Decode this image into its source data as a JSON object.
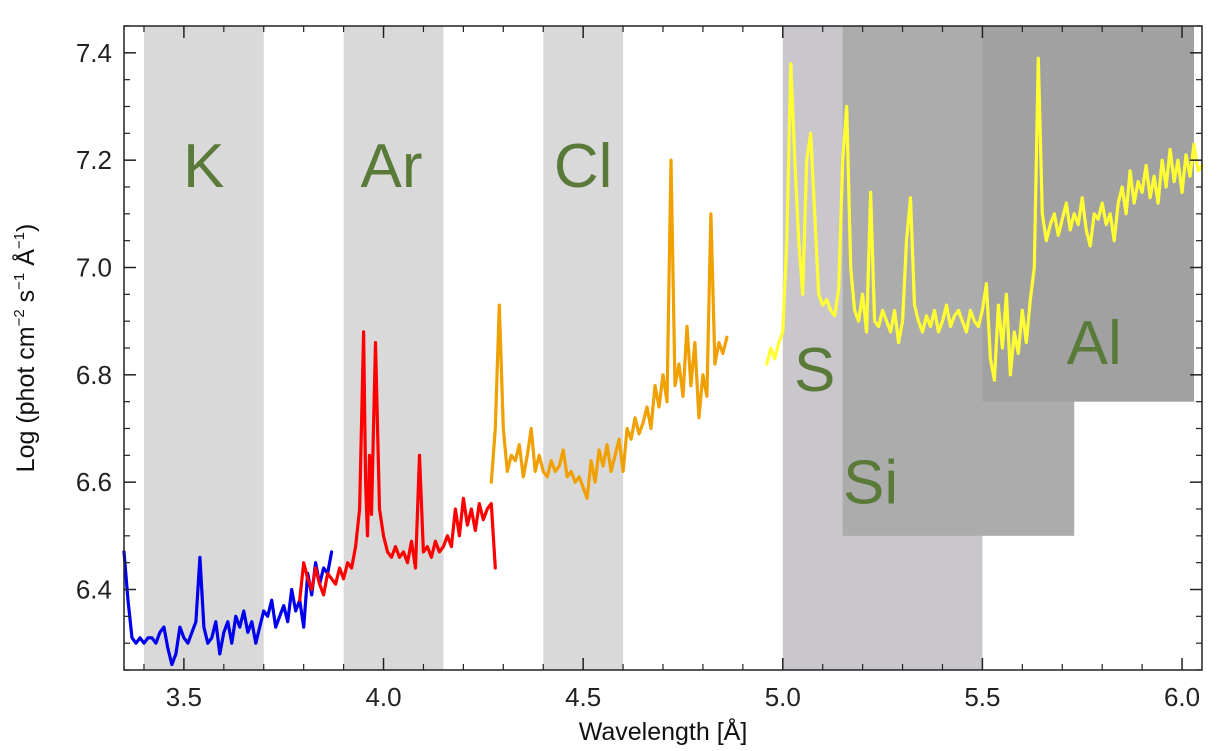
{
  "chart_data": {
    "type": "line",
    "xlabel": "Wavelength [Å]",
    "ylabel_parts": [
      "Log (phot cm",
      "−2",
      " s",
      "−1",
      " Å",
      "−1",
      ")"
    ],
    "ylabel": "Log (phot cm−2 s−1 Å−1)",
    "xlim": [
      3.35,
      6.05
    ],
    "ylim": [
      6.25,
      7.45
    ],
    "xticks": [
      3.5,
      4.0,
      4.5,
      5.0,
      5.5,
      6.0
    ],
    "xtick_labels": [
      "3.5",
      "4.0",
      "4.5",
      "5.0",
      "5.5",
      "6.0"
    ],
    "yticks": [
      6.4,
      6.6,
      6.8,
      7.0,
      7.2,
      7.4
    ],
    "ytick_labels": [
      "6.4",
      "6.6",
      "6.8",
      "7.0",
      "7.2",
      "7.4"
    ],
    "bands": [
      {
        "label": "K",
        "x": [
          3.4,
          3.7
        ],
        "y": [
          6.25,
          7.45
        ],
        "color": "#d9d9d9",
        "label_pos": [
          3.55,
          7.15
        ]
      },
      {
        "label": "Ar",
        "x": [
          3.9,
          4.15
        ],
        "y": [
          6.25,
          7.45
        ],
        "color": "#d9d9d9",
        "label_pos": [
          4.02,
          7.15
        ]
      },
      {
        "label": "Cl",
        "x": [
          4.4,
          4.6
        ],
        "y": [
          6.25,
          7.45
        ],
        "color": "#d9d9d9",
        "label_pos": [
          4.5,
          7.15
        ]
      },
      {
        "label": "S",
        "x": [
          5.0,
          5.5
        ],
        "y": [
          6.25,
          7.45
        ],
        "color": "#c9c6cc",
        "label_pos": [
          5.08,
          6.77
        ]
      },
      {
        "label": "Si",
        "x": [
          5.15,
          5.73
        ],
        "y": [
          6.5,
          7.45
        ],
        "color": "#acacac",
        "label_pos": [
          5.22,
          6.56
        ]
      },
      {
        "label": "Al",
        "x": [
          5.5,
          6.03
        ],
        "y": [
          6.75,
          7.45
        ],
        "color": "#a1a1a1",
        "label_pos": [
          5.78,
          6.82
        ]
      }
    ],
    "series": [
      {
        "name": "K",
        "color": "#0000ee",
        "x": [
          3.35,
          3.36,
          3.37,
          3.38,
          3.39,
          3.4,
          3.41,
          3.42,
          3.43,
          3.44,
          3.45,
          3.46,
          3.47,
          3.48,
          3.49,
          3.5,
          3.51,
          3.52,
          3.53,
          3.54,
          3.55,
          3.56,
          3.57,
          3.58,
          3.59,
          3.6,
          3.61,
          3.62,
          3.63,
          3.64,
          3.65,
          3.66,
          3.67,
          3.68,
          3.69,
          3.7,
          3.71,
          3.72,
          3.73,
          3.74,
          3.75,
          3.76,
          3.77,
          3.78,
          3.79,
          3.8,
          3.81,
          3.82,
          3.83,
          3.84,
          3.85,
          3.86,
          3.87
        ],
        "y": [
          6.47,
          6.38,
          6.31,
          6.3,
          6.31,
          6.3,
          6.31,
          6.31,
          6.3,
          6.32,
          6.33,
          6.29,
          6.26,
          6.28,
          6.33,
          6.31,
          6.3,
          6.32,
          6.34,
          6.46,
          6.33,
          6.3,
          6.31,
          6.34,
          6.28,
          6.32,
          6.34,
          6.3,
          6.35,
          6.33,
          6.36,
          6.32,
          6.34,
          6.3,
          6.33,
          6.36,
          6.35,
          6.38,
          6.33,
          6.35,
          6.37,
          6.34,
          6.4,
          6.36,
          6.38,
          6.33,
          6.43,
          6.39,
          6.45,
          6.41,
          6.44,
          6.43,
          6.47
        ]
      },
      {
        "name": "Ar",
        "color": "#ff0000",
        "x": [
          3.79,
          3.8,
          3.81,
          3.82,
          3.83,
          3.84,
          3.85,
          3.86,
          3.87,
          3.88,
          3.89,
          3.9,
          3.91,
          3.92,
          3.93,
          3.94,
          3.95,
          3.955,
          3.96,
          3.965,
          3.97,
          3.98,
          3.99,
          4.0,
          4.01,
          4.02,
          4.03,
          4.04,
          4.05,
          4.06,
          4.07,
          4.08,
          4.09,
          4.1,
          4.11,
          4.12,
          4.13,
          4.14,
          4.15,
          4.16,
          4.17,
          4.18,
          4.19,
          4.2,
          4.21,
          4.22,
          4.23,
          4.24,
          4.25,
          4.26,
          4.27,
          4.28
        ],
        "y": [
          6.38,
          6.45,
          6.42,
          6.4,
          6.44,
          6.41,
          6.39,
          6.43,
          6.42,
          6.41,
          6.44,
          6.42,
          6.45,
          6.44,
          6.48,
          6.55,
          6.88,
          6.6,
          6.5,
          6.65,
          6.54,
          6.86,
          6.55,
          6.5,
          6.47,
          6.46,
          6.48,
          6.46,
          6.47,
          6.45,
          6.49,
          6.44,
          6.65,
          6.47,
          6.48,
          6.46,
          6.49,
          6.47,
          6.48,
          6.5,
          6.48,
          6.55,
          6.5,
          6.57,
          6.52,
          6.55,
          6.51,
          6.56,
          6.53,
          6.55,
          6.56,
          6.44
        ]
      },
      {
        "name": "Cl",
        "color": "#f0a000",
        "x": [
          4.27,
          4.28,
          4.29,
          4.3,
          4.31,
          4.32,
          4.33,
          4.34,
          4.35,
          4.36,
          4.37,
          4.38,
          4.39,
          4.4,
          4.41,
          4.42,
          4.43,
          4.44,
          4.45,
          4.46,
          4.47,
          4.48,
          4.49,
          4.5,
          4.51,
          4.52,
          4.53,
          4.54,
          4.55,
          4.56,
          4.57,
          4.58,
          4.59,
          4.6,
          4.61,
          4.62,
          4.63,
          4.64,
          4.65,
          4.66,
          4.67,
          4.68,
          4.69,
          4.7,
          4.71,
          4.72,
          4.73,
          4.74,
          4.75,
          4.76,
          4.77,
          4.78,
          4.79,
          4.8,
          4.81,
          4.82,
          4.83,
          4.84,
          4.85,
          4.86
        ],
        "y": [
          6.6,
          6.7,
          6.93,
          6.7,
          6.62,
          6.65,
          6.64,
          6.67,
          6.61,
          6.65,
          6.7,
          6.62,
          6.65,
          6.62,
          6.61,
          6.64,
          6.62,
          6.63,
          6.66,
          6.61,
          6.62,
          6.6,
          6.61,
          6.59,
          6.57,
          6.64,
          6.6,
          6.66,
          6.63,
          6.67,
          6.62,
          6.65,
          6.68,
          6.62,
          6.7,
          6.68,
          6.72,
          6.69,
          6.71,
          6.74,
          6.7,
          6.78,
          6.74,
          6.8,
          6.75,
          7.2,
          6.78,
          6.82,
          6.76,
          6.89,
          6.78,
          6.86,
          6.72,
          6.8,
          6.76,
          7.1,
          6.82,
          6.86,
          6.84,
          6.87
        ]
      },
      {
        "name": "S/Si/Al",
        "color": "#ffff33",
        "x": [
          4.96,
          4.97,
          4.98,
          4.99,
          5.0,
          5.01,
          5.02,
          5.03,
          5.04,
          5.05,
          5.06,
          5.07,
          5.08,
          5.09,
          5.1,
          5.11,
          5.12,
          5.13,
          5.14,
          5.15,
          5.16,
          5.17,
          5.18,
          5.19,
          5.2,
          5.21,
          5.22,
          5.23,
          5.24,
          5.25,
          5.26,
          5.27,
          5.28,
          5.29,
          5.3,
          5.31,
          5.32,
          5.33,
          5.34,
          5.35,
          5.36,
          5.37,
          5.38,
          5.39,
          5.4,
          5.41,
          5.42,
          5.43,
          5.44,
          5.45,
          5.46,
          5.47,
          5.48,
          5.49,
          5.5,
          5.51,
          5.52,
          5.53,
          5.54,
          5.55,
          5.56,
          5.57,
          5.58,
          5.59,
          5.6,
          5.61,
          5.62,
          5.63,
          5.64,
          5.65,
          5.66,
          5.67,
          5.68,
          5.69,
          5.7,
          5.71,
          5.72,
          5.73,
          5.74,
          5.75,
          5.76,
          5.77,
          5.78,
          5.79,
          5.8,
          5.81,
          5.82,
          5.83,
          5.84,
          5.85,
          5.86,
          5.87,
          5.88,
          5.89,
          5.9,
          5.91,
          5.92,
          5.93,
          5.94,
          5.95,
          5.96,
          5.97,
          5.98,
          5.99,
          6.0,
          6.01,
          6.02,
          6.03,
          6.04,
          6.05
        ],
        "y": [
          6.82,
          6.85,
          6.83,
          6.86,
          6.88,
          7.05,
          7.38,
          7.2,
          7.05,
          6.95,
          7.2,
          7.25,
          7.1,
          6.95,
          6.93,
          6.94,
          6.92,
          6.91,
          6.96,
          7.2,
          7.3,
          7.0,
          6.92,
          6.9,
          6.95,
          6.88,
          7.14,
          6.9,
          6.89,
          6.92,
          6.9,
          6.88,
          6.92,
          6.86,
          6.9,
          7.05,
          7.13,
          6.93,
          6.9,
          6.88,
          6.91,
          6.89,
          6.92,
          6.88,
          6.9,
          6.93,
          6.89,
          6.91,
          6.92,
          6.9,
          6.88,
          6.92,
          6.9,
          6.89,
          6.92,
          6.97,
          6.83,
          6.79,
          6.93,
          6.85,
          6.95,
          6.8,
          6.88,
          6.84,
          6.92,
          6.86,
          6.94,
          7.0,
          7.39,
          7.1,
          7.05,
          7.08,
          7.1,
          7.06,
          7.09,
          7.12,
          7.07,
          7.1,
          7.08,
          7.13,
          7.07,
          7.04,
          7.1,
          7.09,
          7.12,
          7.08,
          7.1,
          7.05,
          7.12,
          7.15,
          7.1,
          7.18,
          7.12,
          7.16,
          7.14,
          7.19,
          7.13,
          7.17,
          7.12,
          7.2,
          7.15,
          7.22,
          7.16,
          7.2,
          7.14,
          7.21,
          7.17,
          7.23,
          7.18,
          7.19
        ]
      }
    ]
  }
}
